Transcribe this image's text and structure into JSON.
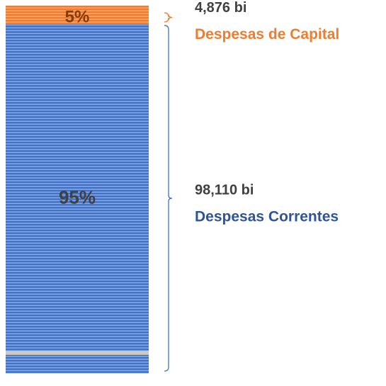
{
  "chart_data": {
    "type": "stacked_bar",
    "series": [
      {
        "name": "Despesas Correntes",
        "color": "#4472c4",
        "label_color": "#2f5597",
        "values": [
          95
        ],
        "value_labels": [
          "95%"
        ],
        "amount": "98,110 bi"
      },
      {
        "name": "Despesas de Capital",
        "color": "#ed7d31",
        "label_color": "#ed7d31",
        "values": [
          5
        ],
        "value_labels": [
          "5%"
        ],
        "amount": "4,876 bi"
      }
    ]
  }
}
